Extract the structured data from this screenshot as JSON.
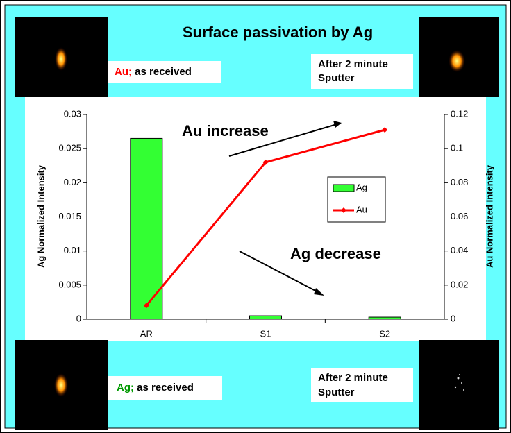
{
  "chart_data": {
    "type": "bar",
    "title": "Surface passivation by Ag",
    "categories": [
      "AR",
      "S1",
      "S2"
    ],
    "series": [
      {
        "name": "Ag",
        "type": "bar",
        "color": "#33ff33",
        "values": [
          0.0265,
          0.0005,
          0.0003
        ]
      },
      {
        "name": "Au",
        "type": "line",
        "color": "#ff0000",
        "axis": "y2",
        "values": [
          0.008,
          0.092,
          0.111
        ]
      }
    ],
    "ylabel": "Ag Normalized Intensity",
    "y2label": "Au Normalized Intensity",
    "ylim": [
      0,
      0.03
    ],
    "yticks": [
      0,
      0.005,
      0.01,
      0.015,
      0.02,
      0.025,
      0.03
    ],
    "y2lim": [
      0,
      0.12
    ],
    "y2ticks": [
      0,
      0.02,
      0.04,
      0.06,
      0.08,
      0.1,
      0.12
    ],
    "annotations": [
      "Au increase",
      "Ag decrease"
    ],
    "legend": "right"
  },
  "image_labels": [
    {
      "prefix": "Au;",
      "text": "as received"
    },
    {
      "lines": [
        "After 2 minute",
        "Sputter"
      ]
    },
    {
      "prefix": "Ag;",
      "text": "as received"
    },
    {
      "lines": [
        "After 2 minute",
        "Sputter"
      ]
    }
  ]
}
